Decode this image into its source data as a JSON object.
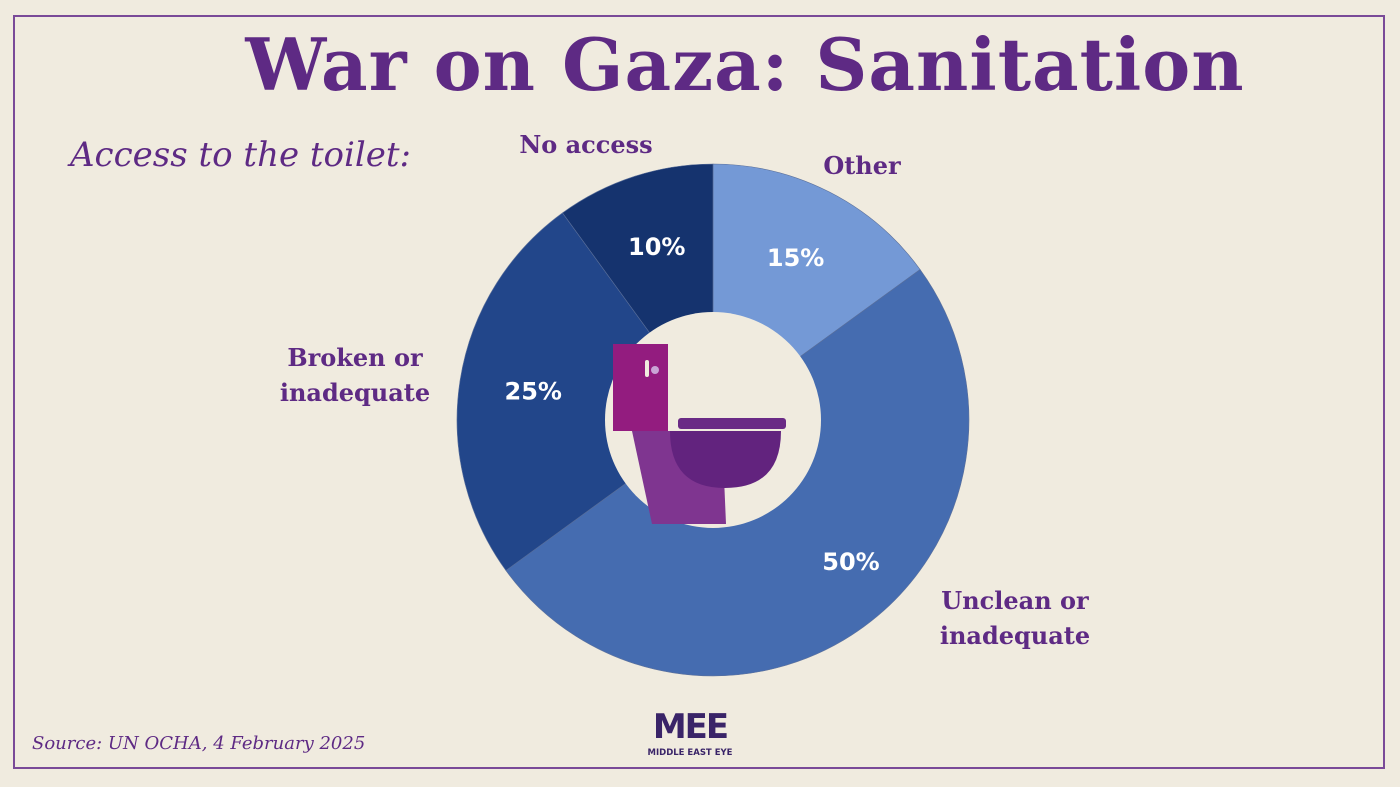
{
  "title": "War on Gaza: Sanitation",
  "subtitle": "Access to the toilet:",
  "source": "Source: UN OCHA, 4 February 2025",
  "logo": {
    "mark": "MEE",
    "name": "MIDDLE EAST EYE"
  },
  "chart_data": {
    "type": "pie",
    "donut": true,
    "title": "Access to the toilet:",
    "slices": [
      {
        "label": "Other",
        "label_lines": [
          "Other"
        ],
        "value": 15,
        "value_label": "15%",
        "color": "#7499d6"
      },
      {
        "label": "Unclean or inadequate",
        "label_lines": [
          "Unclean or",
          "inadequate"
        ],
        "value": 50,
        "value_label": "50%",
        "color": "#456cb0"
      },
      {
        "label": "Broken or inadequate",
        "label_lines": [
          "Broken or",
          "inadequate"
        ],
        "value": 25,
        "value_label": "25%",
        "color": "#22468a"
      },
      {
        "label": "No access",
        "label_lines": [
          "No access"
        ],
        "value": 10,
        "value_label": "10%",
        "color": "#15336e"
      }
    ],
    "center_icon": "toilet-icon"
  },
  "colors": {
    "accent": "#5e2a84",
    "background": "#f0ebdf"
  }
}
